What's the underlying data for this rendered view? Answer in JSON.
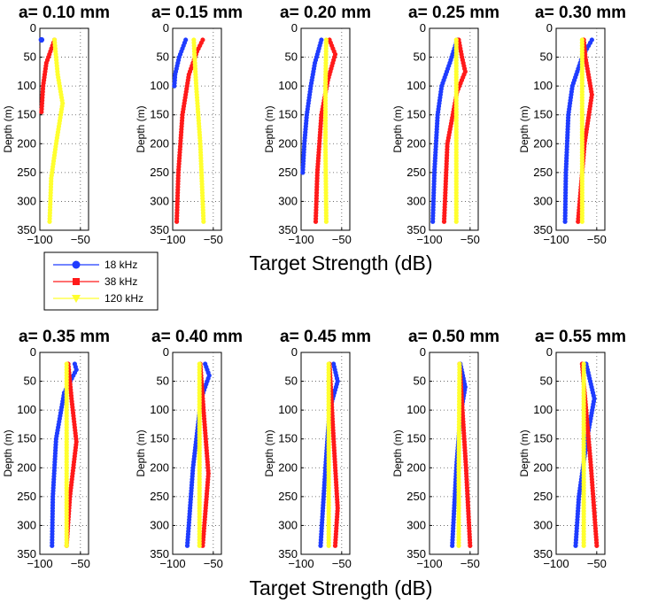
{
  "chart_data": {
    "type": "line",
    "xlabel": "Target Strength (dB)",
    "ylabel": "Depth (m)",
    "xlim": [
      -100,
      -40
    ],
    "ylim": [
      0,
      350
    ],
    "y_inverted": true,
    "grid": true,
    "x_ticks": [
      "−100",
      "−50"
    ],
    "y_ticks": [
      "0",
      "50",
      "100",
      "150",
      "200",
      "250",
      "300",
      "350"
    ],
    "legend": {
      "placement": "below-top-row-left",
      "entries": [
        {
          "name": "18 kHz",
          "color": "#1f3cff",
          "marker": "circle"
        },
        {
          "name": "38 kHz",
          "color": "#ff1a1a",
          "marker": "square"
        },
        {
          "name": "120 kHz",
          "color": "#ffff2e",
          "marker": "triangle-down"
        }
      ]
    },
    "panels": [
      {
        "title": "a= 0.10 mm",
        "series": [
          {
            "name": "18 kHz",
            "depth": [
              20
            ],
            "ts": [
              -98
            ]
          },
          {
            "name": "38 kHz",
            "depth": [
              20,
              60,
              100,
              145
            ],
            "ts": [
              -82,
              -92,
              -96,
              -98
            ]
          },
          {
            "name": "120 kHz",
            "depth": [
              20,
              80,
              130,
              200,
              260,
              335
            ],
            "ts": [
              -82,
              -78,
              -72,
              -80,
              -86,
              -88
            ]
          }
        ]
      },
      {
        "title": "a= 0.15 mm",
        "series": [
          {
            "name": "18 kHz",
            "depth": [
              20,
              50,
              80,
              100
            ],
            "ts": [
              -84,
              -92,
              -97,
              -98
            ]
          },
          {
            "name": "38 kHz",
            "depth": [
              20,
              40,
              80,
              150,
              250,
              335
            ],
            "ts": [
              -63,
              -70,
              -80,
              -88,
              -93,
              -95
            ]
          },
          {
            "name": "120 kHz",
            "depth": [
              20,
              50,
              100,
              200,
              335
            ],
            "ts": [
              -74,
              -73,
              -71,
              -66,
              -62
            ]
          }
        ]
      },
      {
        "title": "a= 0.20 mm",
        "series": [
          {
            "name": "18 kHz",
            "depth": [
              20,
              60,
              100,
              150,
              200,
              250
            ],
            "ts": [
              -75,
              -83,
              -88,
              -93,
              -96,
              -98
            ]
          },
          {
            "name": "38 kHz",
            "depth": [
              20,
              45,
              90,
              150,
              250,
              335
            ],
            "ts": [
              -65,
              -58,
              -67,
              -75,
              -80,
              -82
            ]
          },
          {
            "name": "120 kHz",
            "depth": [
              20,
              100,
              200,
              335
            ],
            "ts": [
              -69,
              -70,
              -70,
              -69
            ]
          }
        ]
      },
      {
        "title": "a= 0.25 mm",
        "series": [
          {
            "name": "18 kHz",
            "depth": [
              20,
              60,
              100,
              150,
              250,
              335
            ],
            "ts": [
              -66,
              -75,
              -85,
              -90,
              -94,
              -96
            ]
          },
          {
            "name": "38 kHz",
            "depth": [
              20,
              50,
              75,
              110,
              200,
              335
            ],
            "ts": [
              -64,
              -60,
              -56,
              -66,
              -78,
              -82
            ]
          },
          {
            "name": "120 kHz",
            "depth": [
              20,
              200,
              335
            ],
            "ts": [
              -67,
              -67,
              -67
            ]
          }
        ]
      },
      {
        "title": "a= 0.30 mm",
        "series": [
          {
            "name": "18 kHz",
            "depth": [
              20,
              50,
              100,
              150,
              250,
              335
            ],
            "ts": [
              -56,
              -68,
              -80,
              -85,
              -88,
              -89
            ]
          },
          {
            "name": "38 kHz",
            "depth": [
              20,
              50,
              115,
              200,
              335
            ],
            "ts": [
              -66,
              -64,
              -56,
              -65,
              -73
            ]
          },
          {
            "name": "120 kHz",
            "depth": [
              20,
              200,
              335
            ],
            "ts": [
              -68,
              -68,
              -68
            ]
          }
        ]
      },
      {
        "title": "a= 0.35 mm",
        "series": [
          {
            "name": "18 kHz",
            "depth": [
              20,
              30,
              70,
              150,
              250,
              335
            ],
            "ts": [
              -57,
              -55,
              -70,
              -80,
              -84,
              -85
            ]
          },
          {
            "name": "38 kHz",
            "depth": [
              20,
              80,
              155,
              250,
              335
            ],
            "ts": [
              -65,
              -61,
              -55,
              -63,
              -67
            ]
          },
          {
            "name": "120 kHz",
            "depth": [
              20,
              200,
              335
            ],
            "ts": [
              -67,
              -67,
              -67
            ]
          }
        ]
      },
      {
        "title": "a= 0.40 mm",
        "series": [
          {
            "name": "18 kHz",
            "depth": [
              20,
              40,
              80,
              200,
              335
            ],
            "ts": [
              -60,
              -55,
              -65,
              -75,
              -82
            ]
          },
          {
            "name": "38 kHz",
            "depth": [
              20,
              100,
              210,
              335
            ],
            "ts": [
              -66,
              -62,
              -56,
              -63
            ]
          },
          {
            "name": "120 kHz",
            "depth": [
              20,
              200,
              335
            ],
            "ts": [
              -67,
              -67,
              -67
            ]
          }
        ]
      },
      {
        "title": "a= 0.45 mm",
        "series": [
          {
            "name": "18 kHz",
            "depth": [
              20,
              50,
              100,
              200,
              335
            ],
            "ts": [
              -60,
              -55,
              -65,
              -70,
              -76
            ]
          },
          {
            "name": "38 kHz",
            "depth": [
              20,
              150,
              270,
              335
            ],
            "ts": [
              -65,
              -60,
              -55,
              -58
            ]
          },
          {
            "name": "120 kHz",
            "depth": [
              20,
              200,
              335
            ],
            "ts": [
              -66,
              -66,
              -66
            ]
          }
        ]
      },
      {
        "title": "a= 0.50 mm",
        "series": [
          {
            "name": "18 kHz",
            "depth": [
              20,
              60,
              110,
              200,
              335
            ],
            "ts": [
              -62,
              -56,
              -62,
              -67,
              -72
            ]
          },
          {
            "name": "38 kHz",
            "depth": [
              20,
              200,
              335
            ],
            "ts": [
              -63,
              -55,
              -50
            ]
          },
          {
            "name": "120 kHz",
            "depth": [
              20,
              200,
              335
            ],
            "ts": [
              -63,
              -64,
              -64
            ]
          }
        ]
      },
      {
        "title": "a= 0.55 mm",
        "series": [
          {
            "name": "18 kHz",
            "depth": [
              20,
              80,
              150,
              250,
              335
            ],
            "ts": [
              -63,
              -53,
              -62,
              -72,
              -76
            ]
          },
          {
            "name": "38 kHz",
            "depth": [
              20,
              200,
              335
            ],
            "ts": [
              -68,
              -57,
              -50
            ]
          },
          {
            "name": "120 kHz",
            "depth": [
              20,
              200,
              335
            ],
            "ts": [
              -66,
              -66,
              -66
            ]
          }
        ]
      }
    ]
  }
}
